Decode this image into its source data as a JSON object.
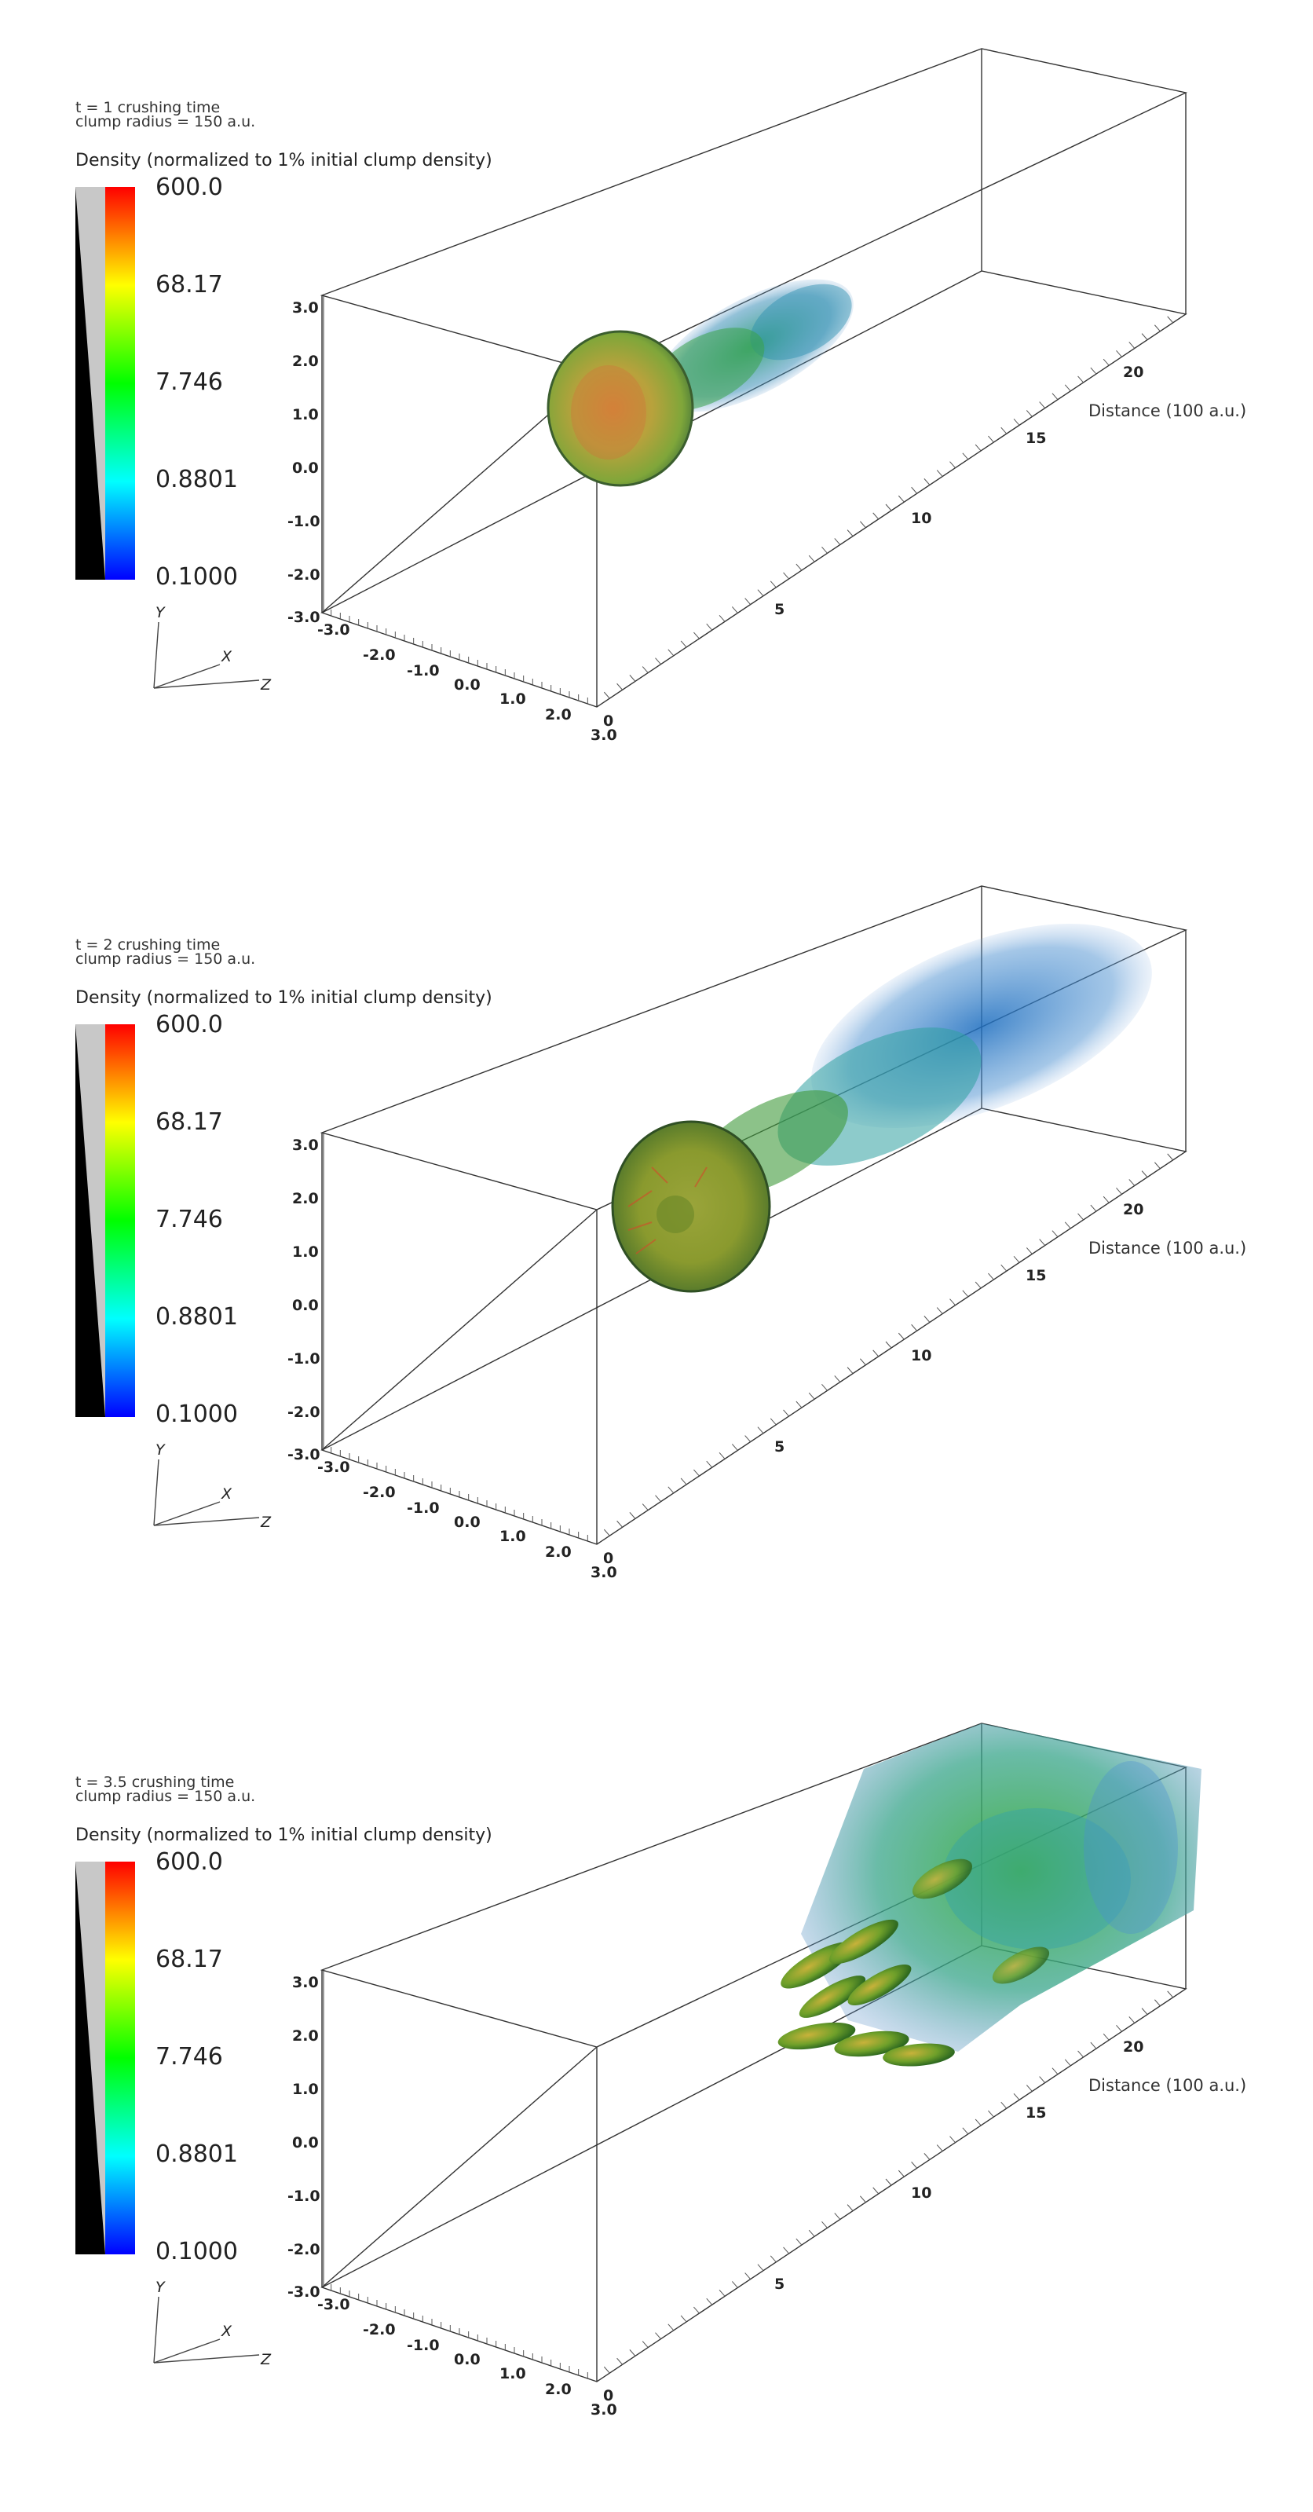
{
  "panels": [
    {
      "time_label": "t = 1 crushing time",
      "radius_label": "clump radius = 150 a.u.",
      "colorbar_title": "Density (normalized to 1% initial clump density)",
      "colorbar_ticks": [
        "600.0",
        "68.17",
        "7.746",
        "0.8801",
        "0.1000"
      ],
      "y_ticks": [
        "3.0",
        "2.0",
        "1.0",
        "0.0",
        "-1.0",
        "-2.0",
        "-3.0"
      ],
      "x_ticks": [
        "-3.0",
        "-2.0",
        "-1.0",
        "0.0",
        "1.0",
        "2.0",
        "3.0"
      ],
      "z_ticks": [
        "0",
        "5",
        "10",
        "15",
        "20"
      ],
      "distance_label": "Distance (100 a.u.)",
      "triad": {
        "y": "Y",
        "x": "X",
        "z": "Z"
      }
    },
    {
      "time_label": "t = 2 crushing time",
      "radius_label": "clump radius = 150 a.u.",
      "colorbar_title": "Density (normalized to 1% initial clump density)",
      "colorbar_ticks": [
        "600.0",
        "68.17",
        "7.746",
        "0.8801",
        "0.1000"
      ],
      "y_ticks": [
        "3.0",
        "2.0",
        "1.0",
        "0.0",
        "-1.0",
        "-2.0",
        "-3.0"
      ],
      "x_ticks": [
        "-3.0",
        "-2.0",
        "-1.0",
        "0.0",
        "1.0",
        "2.0",
        "3.0"
      ],
      "z_ticks": [
        "0",
        "5",
        "10",
        "15",
        "20"
      ],
      "distance_label": "Distance (100 a.u.)",
      "triad": {
        "y": "Y",
        "x": "X",
        "z": "Z"
      }
    },
    {
      "time_label": "t = 3.5 crushing time",
      "radius_label": "clump radius = 150 a.u.",
      "colorbar_title": "Density (normalized to 1% initial clump density)",
      "colorbar_ticks": [
        "600.0",
        "68.17",
        "7.746",
        "0.8801",
        "0.1000"
      ],
      "y_ticks": [
        "3.0",
        "2.0",
        "1.0",
        "0.0",
        "-1.0",
        "-2.0",
        "-3.0"
      ],
      "x_ticks": [
        "-3.0",
        "-2.0",
        "-1.0",
        "0.0",
        "1.0",
        "2.0",
        "3.0"
      ],
      "z_ticks": [
        "0",
        "5",
        "10",
        "15",
        "20"
      ],
      "distance_label": "Distance (100 a.u.)",
      "triad": {
        "y": "Y",
        "x": "X",
        "z": "Z"
      }
    }
  ],
  "colormap": [
    "#ff0000",
    "#ffff00",
    "#00ff00",
    "#00ffff",
    "#0000ff"
  ]
}
